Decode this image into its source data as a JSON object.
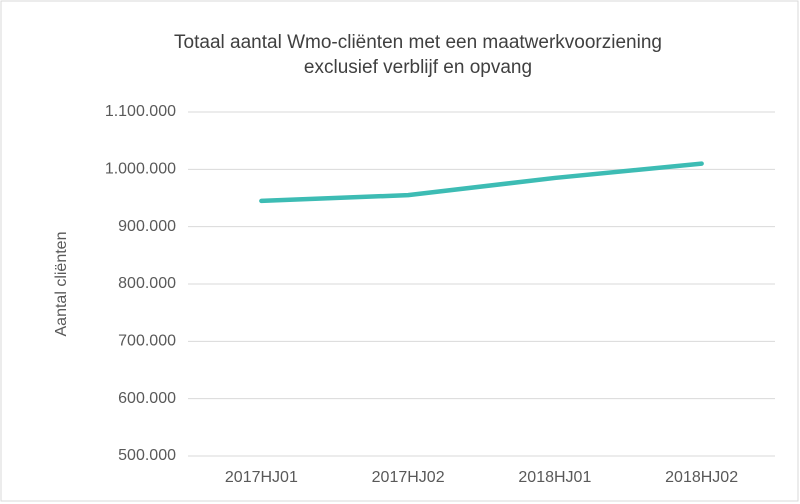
{
  "chart_data": {
    "type": "line",
    "title": [
      "Totaal aantal Wmo-cliënten met een maatwerkvoorziening",
      "exclusief verblijf en opvang"
    ],
    "y_label": "Aantal cliënten",
    "categories": [
      "2017HJ01",
      "2017HJ02",
      "2018HJ01",
      "2018HJ02"
    ],
    "series": [
      {
        "name": "Aantal cliënten",
        "color": "#3dbcb4",
        "values": [
          945000,
          955000,
          985000,
          1010000
        ]
      }
    ],
    "ylim": [
      500000,
      1100000
    ],
    "yticks": [
      {
        "value": 500000,
        "label": "500.000"
      },
      {
        "value": 600000,
        "label": "600.000"
      },
      {
        "value": 700000,
        "label": "700.000"
      },
      {
        "value": 800000,
        "label": "800.000"
      },
      {
        "value": 900000,
        "label": "900.000"
      },
      {
        "value": 1000000,
        "label": "1.000.000"
      },
      {
        "value": 1100000,
        "label": "1.100.000"
      }
    ],
    "grid": true
  }
}
